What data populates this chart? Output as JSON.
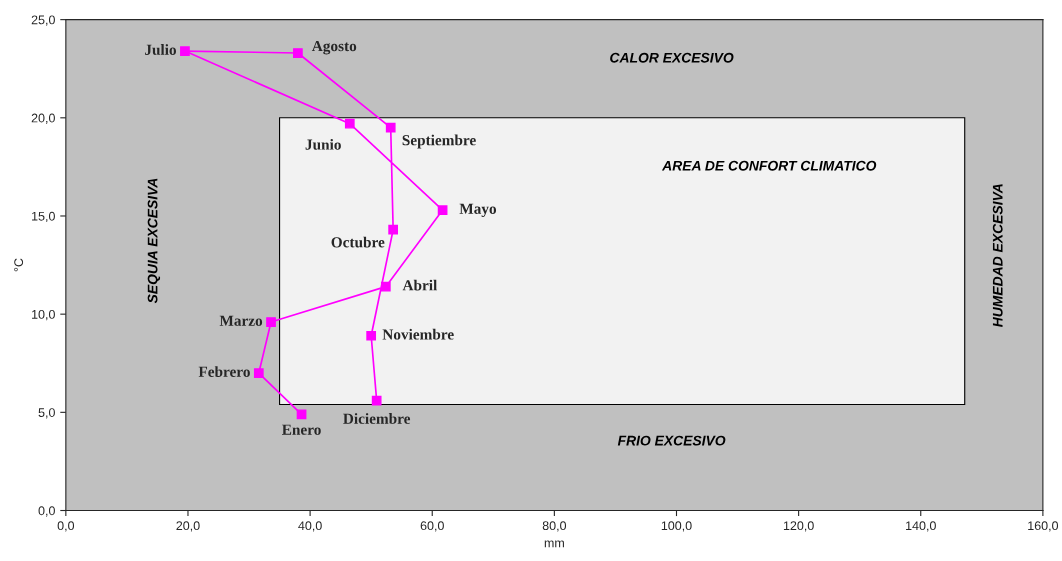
{
  "chart_data": {
    "type": "line",
    "xlabel": "mm",
    "ylabel": "°C",
    "xlim": [
      0,
      160
    ],
    "ylim": [
      0,
      25
    ],
    "xticks": [
      {
        "value": 0,
        "label": "0,0"
      },
      {
        "value": 20,
        "label": "20,0"
      },
      {
        "value": 40,
        "label": "40,0"
      },
      {
        "value": 60,
        "label": "60,0"
      },
      {
        "value": 80,
        "label": "80,0"
      },
      {
        "value": 100,
        "label": "100,0"
      },
      {
        "value": 120,
        "label": "120,0"
      },
      {
        "value": 140,
        "label": "140,0"
      },
      {
        "value": 160,
        "label": "160,0"
      }
    ],
    "yticks": [
      {
        "value": 0,
        "label": "0,0"
      },
      {
        "value": 5,
        "label": "5,0"
      },
      {
        "value": 10,
        "label": "10,0"
      },
      {
        "value": 15,
        "label": "15,0"
      },
      {
        "value": 20,
        "label": "20,0"
      },
      {
        "value": 25,
        "label": "25,0"
      }
    ],
    "grid": false,
    "legend": false,
    "line_style": "solid",
    "series": [
      {
        "color": "#ff00ff",
        "marker": "square",
        "x": [
          38.6,
          31.6,
          33.6,
          52.4,
          61.7,
          46.5,
          19.5,
          38.0,
          53.2,
          53.6,
          50.0,
          50.9
        ],
        "values": [
          4.9,
          7.0,
          9.6,
          11.4,
          15.3,
          19.7,
          23.4,
          23.3,
          19.5,
          14.3,
          8.9,
          5.6
        ]
      },
      {
        "type": "area",
        "color": "#f2f2f2",
        "x": [
          35.0,
          147.2,
          147.2,
          35.0,
          35.0
        ],
        "values": [
          20.0,
          20.0,
          5.4,
          5.4,
          20.0
        ]
      }
    ],
    "annotations": [
      {
        "text": "Enero",
        "x": 38.6,
        "y": 4.9
      },
      {
        "text": "Febrero",
        "x": 31.6,
        "y": 7.0
      },
      {
        "text": "Marzo",
        "x": 33.6,
        "y": 9.6
      },
      {
        "text": "Abril",
        "x": 52.4,
        "y": 11.4
      },
      {
        "text": "Mayo",
        "x": 61.7,
        "y": 15.3
      },
      {
        "text": "Junio",
        "x": 46.5,
        "y": 19.7
      },
      {
        "text": "Julio",
        "x": 19.5,
        "y": 23.4
      },
      {
        "text": "Agosto",
        "x": 38.0,
        "y": 23.3
      },
      {
        "text": "Septiembre",
        "x": 53.2,
        "y": 19.5
      },
      {
        "text": "Octubre",
        "x": 53.6,
        "y": 14.3
      },
      {
        "text": "Noviembre",
        "x": 50.0,
        "y": 8.9
      },
      {
        "text": "Diciembre",
        "x": 50.9,
        "y": 5.6
      },
      "CALOR EXCESIVO",
      "FRIO EXCESIVO",
      "SEQUIA EXCESIVA",
      "HUMEDAD EXCESIVA",
      "AREA DE CONFORT CLIMATICO"
    ]
  }
}
